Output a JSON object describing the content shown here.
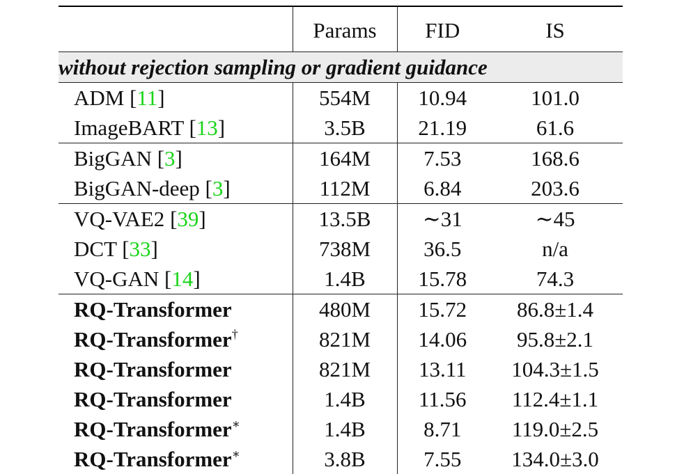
{
  "header": {
    "method": "",
    "params": "Params",
    "fid": "FID",
    "is": "IS"
  },
  "section_title": "without rejection sampling or gradient guidance",
  "rows": [
    {
      "name": "ADM",
      "ref": "11",
      "sup": "",
      "bold": false,
      "params": "554M",
      "fid": "10.94",
      "is": "101.0",
      "group_start": true
    },
    {
      "name": "ImageBART",
      "ref": "13",
      "sup": "",
      "bold": false,
      "params": "3.5B",
      "fid": "21.19",
      "is": "61.6",
      "group_start": false
    },
    {
      "name": "BigGAN",
      "ref": "3",
      "sup": "",
      "bold": false,
      "params": "164M",
      "fid": "7.53",
      "is": "168.6",
      "group_start": true
    },
    {
      "name": "BigGAN-deep",
      "ref": "3",
      "sup": "",
      "bold": false,
      "params": "112M",
      "fid": "6.84",
      "is": "203.6",
      "group_start": false
    },
    {
      "name": "VQ-VAE2",
      "ref": "39",
      "sup": "",
      "bold": false,
      "params": "13.5B",
      "fid": "∼31",
      "is": "∼45",
      "group_start": true
    },
    {
      "name": "DCT",
      "ref": "33",
      "sup": "",
      "bold": false,
      "params": "738M",
      "fid": "36.5",
      "is": "n/a",
      "group_start": false
    },
    {
      "name": "VQ-GAN",
      "ref": "14",
      "sup": "",
      "bold": false,
      "params": "1.4B",
      "fid": "15.78",
      "is": "74.3",
      "group_start": false
    },
    {
      "name": "RQ-Transformer",
      "ref": "",
      "sup": "",
      "bold": true,
      "params": "480M",
      "fid": "15.72",
      "is": "86.8±1.4",
      "group_start": true
    },
    {
      "name": "RQ-Transformer",
      "ref": "",
      "sup": "†",
      "bold": true,
      "params": "821M",
      "fid": "14.06",
      "is": "95.8±2.1",
      "group_start": false
    },
    {
      "name": "RQ-Transformer",
      "ref": "",
      "sup": "",
      "bold": true,
      "params": "821M",
      "fid": "13.11",
      "is": "104.3±1.5",
      "group_start": false
    },
    {
      "name": "RQ-Transformer",
      "ref": "",
      "sup": "",
      "bold": true,
      "params": "1.4B",
      "fid": "11.56",
      "is": "112.4±1.1",
      "group_start": false
    },
    {
      "name": "RQ-Transformer",
      "ref": "",
      "sup": "∗",
      "bold": true,
      "params": "1.4B",
      "fid": "8.71",
      "is": "119.0±2.5",
      "group_start": false
    },
    {
      "name": "RQ-Transformer",
      "ref": "",
      "sup": "∗",
      "bold": true,
      "params": "3.8B",
      "fid": "7.55",
      "is": "134.0±3.0",
      "group_start": false
    }
  ],
  "colors": {
    "citation": "#19d419",
    "section_bg": "#ececec"
  }
}
